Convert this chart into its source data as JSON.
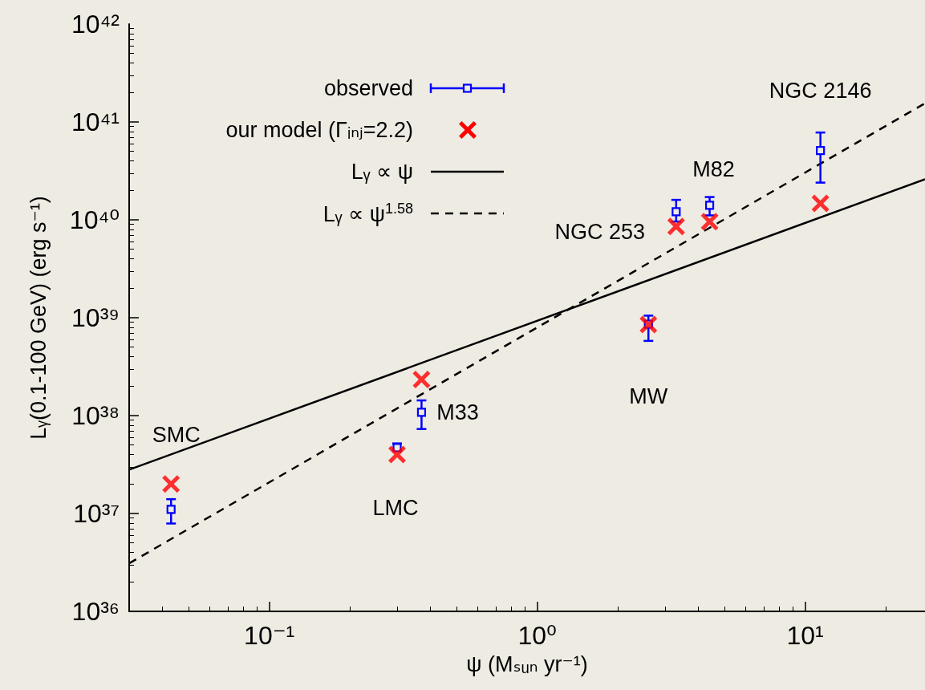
{
  "chart_data": {
    "type": "scatter",
    "xlabel": "ψ (Mₛᵤₙ yr⁻¹)",
    "ylabel": "Lᵧ(0.1-100 GeV) (erg s⁻¹)",
    "log": "xy",
    "xlim": [
      0.03,
      28
    ],
    "ylim": [
      1e+36,
      1e+42
    ],
    "xticks": [
      {
        "value": 0.1,
        "label": "10⁻¹"
      },
      {
        "value": 1,
        "label": "10⁰"
      },
      {
        "value": 10,
        "label": "10¹"
      }
    ],
    "yticks": [
      {
        "value": 1e+36,
        "label": "10³⁶"
      },
      {
        "value": 1e+37,
        "label": "10³⁷"
      },
      {
        "value": 1e+38,
        "label": "10³⁸"
      },
      {
        "value": 1e+39,
        "label": "10³⁹"
      },
      {
        "value": 1e+40,
        "label": "10⁴⁰"
      },
      {
        "value": 1e+41,
        "label": "10⁴¹"
      },
      {
        "value": 1e+42,
        "label": "10⁴²"
      }
    ],
    "grid": false,
    "legend": "top left",
    "series": [
      {
        "name": "observed",
        "marker": "square",
        "color": "#0000ff",
        "x": [
          0.043,
          0.3,
          0.37,
          2.6,
          3.3,
          4.4,
          11.4
        ],
        "values": [
          1.1e+37,
          4.7e+37,
          1.08e+38,
          8.6e+38,
          1.21e+40,
          1.41e+40,
          5.1e+40
        ],
        "errors": [
          [
            7.9e+36,
            1.4e+37
          ],
          [
            4.5e+37,
            5.2e+37
          ],
          [
            7.3e+37,
            1.43e+38
          ],
          [
            5.8e+38,
            1.05e+39
          ],
          [
            9.6e+39,
            1.6e+40
          ],
          [
            1.11e+40,
            1.71e+40
          ],
          [
            2.4e+40,
            7.8e+40
          ]
        ]
      },
      {
        "name": "our model (Γᵢₙⱼ=2.2)",
        "marker": "cross",
        "color": "#ff0000",
        "x": [
          0.043,
          0.3,
          0.37,
          2.6,
          3.3,
          4.4,
          11.4
        ],
        "values": [
          2e+37,
          4e+37,
          2.34e+38,
          8.5e+38,
          8.55e+39,
          9.6e+39,
          1.47e+40
        ]
      },
      {
        "name": "Lᵧ ∝ ψ",
        "type": "line",
        "marker": "none",
        "line_style": "solid",
        "color": "#000000",
        "x": [
          0.03,
          28
        ],
        "values": [
          2.8e+37,
          2.6e+40
        ]
      },
      {
        "name": "Lᵧ ∝ ψ$^{1.58}$",
        "type": "line",
        "marker": "none",
        "line_style": "dashed",
        "color": "#000000",
        "x": [
          0.03,
          28
        ],
        "values": [
          3.1e+36,
          1.55e+41
        ]
      }
    ],
    "annotations": [
      {
        "text": "SMC",
        "x": 0.045,
        "y": 4.2e+37
      },
      {
        "text": "LMC",
        "x": 0.3,
        "y": 4.7e+37
      },
      {
        "text": "M33",
        "x": 0.37,
        "y": 1.08e+38
      },
      {
        "text": "MW",
        "x": 2.6,
        "y": 8.6e+38
      },
      {
        "text": "NGC 253",
        "x": 3.3,
        "y": 1.21e+40
      },
      {
        "text": "M82",
        "x": 4.4,
        "y": 1.41e+40
      },
      {
        "text": "NGC 2146",
        "x": 11.4,
        "y": 5.1e+40
      }
    ]
  }
}
